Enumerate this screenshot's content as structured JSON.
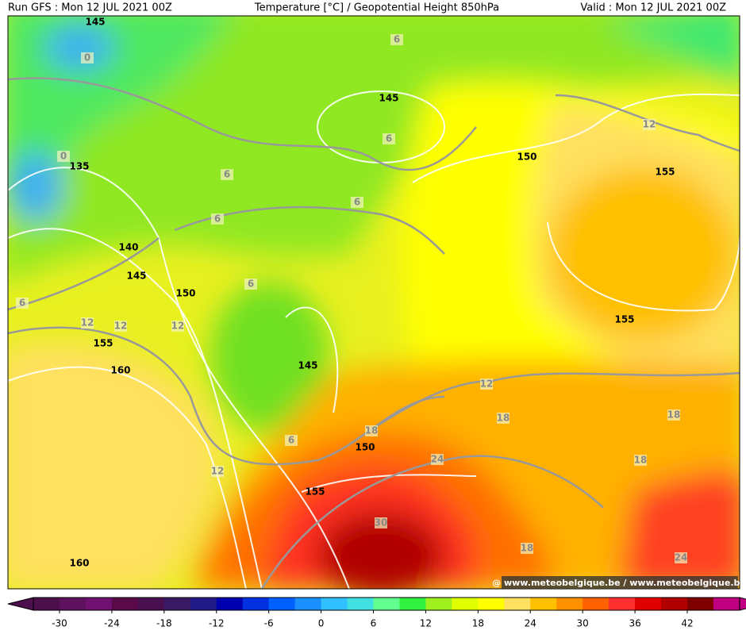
{
  "header": {
    "run": "Run GFS : Mon 12 JUL 2021 00Z",
    "title": "Temperature [°C] / Geopotential Height 850hPa",
    "valid": "Valid : Mon 12 JUL 2021 00Z"
  },
  "height_labels": [
    "145",
    "135",
    "140",
    "145",
    "150",
    "155",
    "160",
    "145",
    "150",
    "155",
    "155",
    "145",
    "150",
    "155",
    "160"
  ],
  "temperature_labels": [
    "0",
    "0",
    "6",
    "6",
    "6",
    "6",
    "6",
    "6",
    "6",
    "6",
    "12",
    "12",
    "12",
    "12",
    "12",
    "12",
    "18",
    "18",
    "18",
    "18",
    "18",
    "24",
    "24",
    "30"
  ],
  "colorbar": {
    "ticks": [
      -30,
      -24,
      -18,
      -12,
      -6,
      0,
      6,
      12,
      18,
      24,
      30,
      36,
      42
    ],
    "colors": [
      "#4b0f4b",
      "#5e125e",
      "#701070",
      "#5a0a48",
      "#48104e",
      "#3a1a64",
      "#201a88",
      "#0000b0",
      "#0030e0",
      "#0060ff",
      "#1a90ff",
      "#30c0ff",
      "#40e0e0",
      "#60ff90",
      "#30f040",
      "#a0f020",
      "#e0ff00",
      "#ffff00",
      "#ffe060",
      "#ffc000",
      "#ff9000",
      "#ff6000",
      "#ff3030",
      "#e00000",
      "#b00000",
      "#800000",
      "#c00080"
    ]
  },
  "watermark": "@ www.meteobelgique.be / www.meteobelgique.be"
}
